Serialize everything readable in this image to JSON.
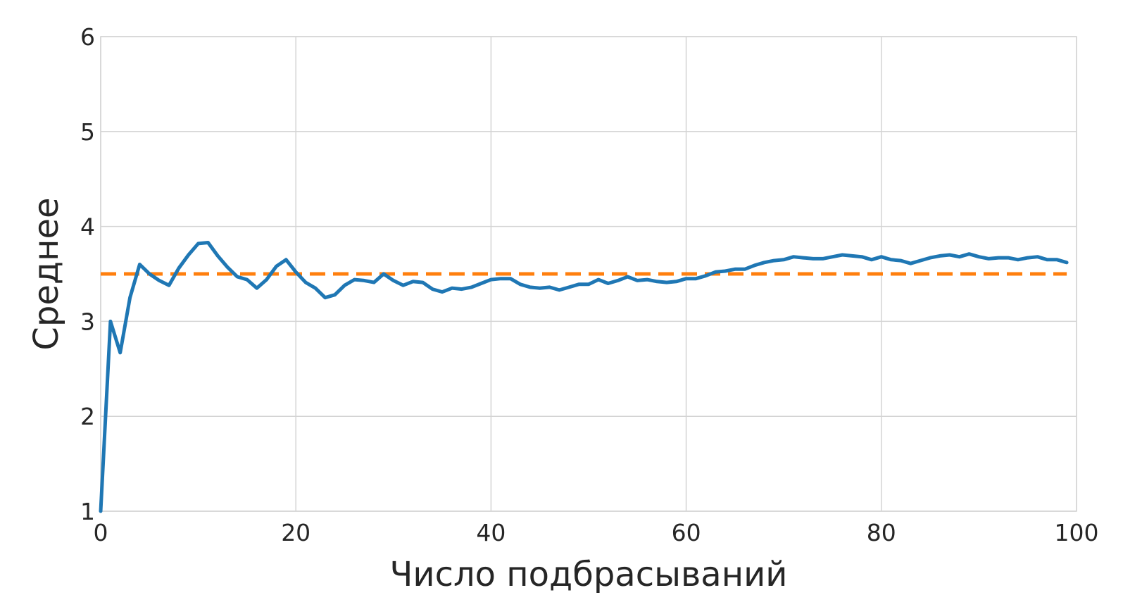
{
  "chart_data": {
    "type": "line",
    "title": "",
    "xlabel": "Число подбрасываний",
    "ylabel": "Среднее",
    "xlim": [
      0,
      100
    ],
    "ylim": [
      1,
      6
    ],
    "xticks": [
      0,
      20,
      40,
      60,
      80,
      100
    ],
    "yticks": [
      1,
      2,
      3,
      4,
      5,
      6
    ],
    "grid": true,
    "legend": "none",
    "series": [
      {
        "style": "solid",
        "color": "#1f77b4",
        "x": [
          0,
          1,
          2,
          3,
          4,
          5,
          6,
          7,
          8,
          9,
          10,
          11,
          12,
          13,
          14,
          15,
          16,
          17,
          18,
          19,
          20,
          21,
          22,
          23,
          24,
          25,
          26,
          27,
          28,
          29,
          30,
          31,
          32,
          33,
          34,
          35,
          36,
          37,
          38,
          39,
          40,
          41,
          42,
          43,
          44,
          45,
          46,
          47,
          48,
          49,
          50,
          51,
          52,
          53,
          54,
          55,
          56,
          57,
          58,
          59,
          60,
          61,
          62,
          63,
          64,
          65,
          66,
          67,
          68,
          69,
          70,
          71,
          72,
          73,
          74,
          75,
          76,
          77,
          78,
          79,
          80,
          81,
          82,
          83,
          84,
          85,
          86,
          87,
          88,
          89,
          90,
          91,
          92,
          93,
          94,
          95,
          96,
          97,
          98,
          99
        ],
        "y": [
          1.0,
          3.0,
          2.67,
          3.25,
          3.6,
          3.5,
          3.43,
          3.38,
          3.56,
          3.7,
          3.82,
          3.83,
          3.69,
          3.57,
          3.47,
          3.44,
          3.35,
          3.44,
          3.58,
          3.65,
          3.52,
          3.41,
          3.35,
          3.25,
          3.28,
          3.38,
          3.44,
          3.43,
          3.41,
          3.5,
          3.43,
          3.38,
          3.42,
          3.41,
          3.34,
          3.31,
          3.35,
          3.34,
          3.36,
          3.4,
          3.44,
          3.45,
          3.45,
          3.39,
          3.36,
          3.35,
          3.36,
          3.33,
          3.36,
          3.39,
          3.39,
          3.44,
          3.4,
          3.43,
          3.47,
          3.43,
          3.44,
          3.42,
          3.41,
          3.42,
          3.45,
          3.45,
          3.48,
          3.52,
          3.53,
          3.55,
          3.55,
          3.59,
          3.62,
          3.64,
          3.65,
          3.68,
          3.67,
          3.66,
          3.66,
          3.68,
          3.7,
          3.69,
          3.68,
          3.65,
          3.68,
          3.65,
          3.64,
          3.61,
          3.64,
          3.67,
          3.69,
          3.7,
          3.68,
          3.71,
          3.68,
          3.66,
          3.67,
          3.67,
          3.65,
          3.67,
          3.68,
          3.65,
          3.65,
          3.62
        ]
      },
      {
        "style": "dashed",
        "color": "#ff7f0e",
        "x": [
          0,
          99
        ],
        "y": [
          3.5,
          3.5
        ]
      }
    ]
  }
}
